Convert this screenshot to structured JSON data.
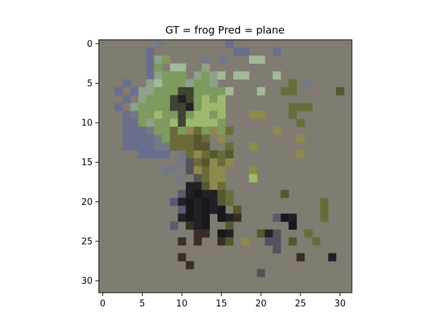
{
  "figure": {
    "title": "GT = frog Pred = plane",
    "background_color": "#807c72",
    "grid_size": 32,
    "xticks": [
      "0",
      "5",
      "10",
      "15",
      "20",
      "25",
      "30"
    ],
    "yticks": [
      "0",
      "5",
      "10",
      "15",
      "20",
      "25",
      "30"
    ]
  },
  "image": {
    "description_type": "pixelated 32x32 thumbnail",
    "palette": {
      "blue": "#6a6e8c",
      "blue_dark": "#5d6180",
      "slate": "#737a84",
      "sage": "#8fa188",
      "green": "#7f9a5e",
      "green_light": "#9fb870",
      "green_pale": "#a3b99a",
      "olive": "#6b6b3a",
      "olive_dark": "#56572e",
      "olive_light": "#8c8a4c",
      "forest": "#3f4530",
      "dark": "#232126",
      "darker": "#18171b",
      "brown": "#3b2e26",
      "grey_dark": "#54535c",
      "purple": "#5c5a72"
    },
    "pixels": [
      [
        7,
        0,
        "slate"
      ],
      [
        16,
        0,
        "blue"
      ],
      [
        6,
        1,
        "blue"
      ],
      [
        17,
        1,
        "blue"
      ],
      [
        18,
        1,
        "blue"
      ],
      [
        22,
        1,
        "blue"
      ],
      [
        6,
        2,
        "blue"
      ],
      [
        7,
        2,
        "sage"
      ],
      [
        8,
        2,
        "green"
      ],
      [
        13,
        2,
        "slate"
      ],
      [
        15,
        2,
        "slate"
      ],
      [
        19,
        2,
        "green_pale"
      ],
      [
        20,
        2,
        "green_pale"
      ],
      [
        6,
        3,
        "blue"
      ],
      [
        7,
        3,
        "green"
      ],
      [
        9,
        3,
        "green_pale"
      ],
      [
        10,
        3,
        "green_pale"
      ],
      [
        13,
        3,
        "sage"
      ],
      [
        6,
        4,
        "blue"
      ],
      [
        7,
        4,
        "sage"
      ],
      [
        8,
        4,
        "green"
      ],
      [
        9,
        4,
        "green"
      ],
      [
        10,
        4,
        "green"
      ],
      [
        12,
        4,
        "sage"
      ],
      [
        13,
        4,
        "green"
      ],
      [
        14,
        4,
        "sage"
      ],
      [
        15,
        4,
        "green_pale"
      ],
      [
        17,
        4,
        "green_pale"
      ],
      [
        18,
        4,
        "green_pale"
      ],
      [
        22,
        4,
        "green_pale"
      ],
      [
        3,
        5,
        "blue"
      ],
      [
        6,
        5,
        "sage"
      ],
      [
        7,
        5,
        "green_pale"
      ],
      [
        8,
        5,
        "green"
      ],
      [
        9,
        5,
        "green"
      ],
      [
        10,
        5,
        "green"
      ],
      [
        11,
        5,
        "sage"
      ],
      [
        12,
        5,
        "green"
      ],
      [
        13,
        5,
        "green"
      ],
      [
        14,
        5,
        "sage"
      ],
      [
        24,
        5,
        "olive"
      ],
      [
        26,
        5,
        "slate"
      ],
      [
        2,
        6,
        "blue"
      ],
      [
        4,
        6,
        "blue"
      ],
      [
        5,
        6,
        "sage"
      ],
      [
        6,
        6,
        "sage"
      ],
      [
        7,
        6,
        "green"
      ],
      [
        8,
        6,
        "green"
      ],
      [
        9,
        6,
        "green"
      ],
      [
        10,
        6,
        "forest"
      ],
      [
        11,
        6,
        "forest"
      ],
      [
        12,
        6,
        "green"
      ],
      [
        13,
        6,
        "green"
      ],
      [
        14,
        6,
        "green"
      ],
      [
        15,
        6,
        "green"
      ],
      [
        16,
        6,
        "green_pale"
      ],
      [
        20,
        6,
        "green_pale"
      ],
      [
        23,
        6,
        "olive"
      ],
      [
        24,
        6,
        "olive"
      ],
      [
        30,
        6,
        "olive_dark"
      ],
      [
        3,
        7,
        "blue"
      ],
      [
        5,
        7,
        "sage"
      ],
      [
        6,
        7,
        "green"
      ],
      [
        7,
        7,
        "green"
      ],
      [
        8,
        7,
        "green"
      ],
      [
        9,
        7,
        "forest"
      ],
      [
        10,
        7,
        "dark"
      ],
      [
        11,
        7,
        "forest"
      ],
      [
        12,
        7,
        "green"
      ],
      [
        13,
        7,
        "green_light"
      ],
      [
        14,
        7,
        "green"
      ],
      [
        15,
        7,
        "green_light"
      ],
      [
        2,
        8,
        "blue"
      ],
      [
        4,
        8,
        "sage"
      ],
      [
        5,
        8,
        "green"
      ],
      [
        6,
        8,
        "green"
      ],
      [
        7,
        8,
        "green"
      ],
      [
        8,
        8,
        "green"
      ],
      [
        9,
        8,
        "forest"
      ],
      [
        10,
        8,
        "forest"
      ],
      [
        11,
        8,
        "dark"
      ],
      [
        12,
        8,
        "green"
      ],
      [
        13,
        8,
        "green_light"
      ],
      [
        14,
        8,
        "green_light"
      ],
      [
        15,
        8,
        "green_light"
      ],
      [
        24,
        8,
        "olive"
      ],
      [
        25,
        8,
        "olive"
      ],
      [
        26,
        8,
        "olive"
      ],
      [
        3,
        9,
        "blue"
      ],
      [
        4,
        9,
        "slate"
      ],
      [
        5,
        9,
        "green"
      ],
      [
        6,
        9,
        "green"
      ],
      [
        7,
        9,
        "green_light"
      ],
      [
        8,
        9,
        "green"
      ],
      [
        9,
        9,
        "green"
      ],
      [
        10,
        9,
        "forest"
      ],
      [
        11,
        9,
        "green"
      ],
      [
        12,
        9,
        "green_light"
      ],
      [
        13,
        9,
        "green_light"
      ],
      [
        14,
        9,
        "green"
      ],
      [
        15,
        9,
        "green_light"
      ],
      [
        19,
        9,
        "olive_light"
      ],
      [
        20,
        9,
        "olive_light"
      ],
      [
        24,
        9,
        "olive"
      ],
      [
        3,
        10,
        "blue"
      ],
      [
        4,
        10,
        "blue"
      ],
      [
        5,
        10,
        "green"
      ],
      [
        6,
        10,
        "sage"
      ],
      [
        7,
        10,
        "green"
      ],
      [
        8,
        10,
        "green"
      ],
      [
        9,
        10,
        "green_light"
      ],
      [
        10,
        10,
        "forest"
      ],
      [
        11,
        10,
        "green_light"
      ],
      [
        12,
        10,
        "green_light"
      ],
      [
        13,
        10,
        "green_light"
      ],
      [
        14,
        10,
        "green_light"
      ],
      [
        15,
        10,
        "green"
      ],
      [
        25,
        10,
        "olive"
      ],
      [
        3,
        11,
        "blue"
      ],
      [
        4,
        11,
        "blue"
      ],
      [
        5,
        11,
        "blue"
      ],
      [
        6,
        11,
        "slate"
      ],
      [
        7,
        11,
        "green"
      ],
      [
        8,
        11,
        "green"
      ],
      [
        9,
        11,
        "olive"
      ],
      [
        10,
        11,
        "green"
      ],
      [
        11,
        11,
        "olive_light"
      ],
      [
        12,
        11,
        "olive"
      ],
      [
        13,
        11,
        "green"
      ],
      [
        14,
        11,
        "olive_light"
      ],
      [
        15,
        11,
        "green"
      ],
      [
        16,
        11,
        "olive"
      ],
      [
        22,
        11,
        "olive_light"
      ],
      [
        3,
        12,
        "blue"
      ],
      [
        4,
        12,
        "blue"
      ],
      [
        5,
        12,
        "blue"
      ],
      [
        6,
        12,
        "blue"
      ],
      [
        7,
        12,
        "slate"
      ],
      [
        8,
        12,
        "green"
      ],
      [
        9,
        12,
        "olive"
      ],
      [
        10,
        12,
        "olive"
      ],
      [
        11,
        12,
        "olive"
      ],
      [
        12,
        12,
        "olive_dark"
      ],
      [
        13,
        12,
        "olive"
      ],
      [
        15,
        12,
        "olive_light"
      ],
      [
        25,
        12,
        "olive_light"
      ],
      [
        3,
        13,
        "blue"
      ],
      [
        4,
        13,
        "blue"
      ],
      [
        5,
        13,
        "blue"
      ],
      [
        6,
        13,
        "blue"
      ],
      [
        7,
        13,
        "slate"
      ],
      [
        8,
        13,
        "slate"
      ],
      [
        9,
        13,
        "olive"
      ],
      [
        10,
        13,
        "olive"
      ],
      [
        11,
        13,
        "olive"
      ],
      [
        12,
        13,
        "olive_dark"
      ],
      [
        13,
        13,
        "olive_dark"
      ],
      [
        16,
        13,
        "olive"
      ],
      [
        19,
        13,
        "olive_light"
      ],
      [
        5,
        14,
        "blue"
      ],
      [
        6,
        14,
        "blue"
      ],
      [
        7,
        14,
        "blue"
      ],
      [
        8,
        14,
        "blue"
      ],
      [
        10,
        14,
        "slate"
      ],
      [
        11,
        14,
        "olive"
      ],
      [
        12,
        14,
        "olive_light"
      ],
      [
        13,
        14,
        "olive"
      ],
      [
        14,
        14,
        "olive_dark"
      ],
      [
        15,
        14,
        "olive"
      ],
      [
        16,
        14,
        "olive_dark"
      ],
      [
        25,
        14,
        "olive_light"
      ],
      [
        10,
        15,
        "slate"
      ],
      [
        11,
        15,
        "grey_dark"
      ],
      [
        12,
        15,
        "olive"
      ],
      [
        13,
        15,
        "olive_dark"
      ],
      [
        14,
        15,
        "olive_light"
      ],
      [
        15,
        15,
        "olive"
      ],
      [
        16,
        15,
        "olive_light"
      ],
      [
        8,
        16,
        "slate"
      ],
      [
        9,
        16,
        "slate"
      ],
      [
        11,
        16,
        "grey_dark"
      ],
      [
        12,
        16,
        "olive_light"
      ],
      [
        13,
        16,
        "olive"
      ],
      [
        14,
        16,
        "olive_light"
      ],
      [
        15,
        16,
        "olive_light"
      ],
      [
        19,
        16,
        "olive_light"
      ],
      [
        10,
        17,
        "slate"
      ],
      [
        12,
        17,
        "grey_dark"
      ],
      [
        13,
        17,
        "olive"
      ],
      [
        14,
        17,
        "olive_light"
      ],
      [
        15,
        17,
        "olive_light"
      ],
      [
        19,
        17,
        "green_light"
      ],
      [
        11,
        18,
        "dark"
      ],
      [
        12,
        18,
        "dark"
      ],
      [
        13,
        18,
        "olive_dark"
      ],
      [
        14,
        18,
        "olive_light"
      ],
      [
        15,
        18,
        "olive"
      ],
      [
        10,
        19,
        "purple"
      ],
      [
        11,
        19,
        "dark"
      ],
      [
        12,
        19,
        "darker"
      ],
      [
        13,
        19,
        "dark"
      ],
      [
        14,
        19,
        "dark"
      ],
      [
        15,
        19,
        "olive_dark"
      ],
      [
        16,
        19,
        "olive"
      ],
      [
        23,
        19,
        "olive_dark"
      ],
      [
        9,
        20,
        "purple"
      ],
      [
        10,
        20,
        "dark"
      ],
      [
        11,
        20,
        "darker"
      ],
      [
        12,
        20,
        "dark"
      ],
      [
        13,
        20,
        "darker"
      ],
      [
        14,
        20,
        "dark"
      ],
      [
        15,
        20,
        "olive_dark"
      ],
      [
        16,
        20,
        "olive"
      ],
      [
        28,
        20,
        "olive"
      ],
      [
        10,
        21,
        "purple"
      ],
      [
        11,
        21,
        "darker"
      ],
      [
        12,
        21,
        "dark"
      ],
      [
        13,
        21,
        "darker"
      ],
      [
        14,
        21,
        "dark"
      ],
      [
        15,
        21,
        "darker"
      ],
      [
        17,
        21,
        "olive_dark"
      ],
      [
        28,
        21,
        "olive"
      ],
      [
        10,
        22,
        "dark"
      ],
      [
        11,
        22,
        "darker"
      ],
      [
        12,
        22,
        "dark"
      ],
      [
        13,
        22,
        "darker"
      ],
      [
        15,
        22,
        "darker"
      ],
      [
        16,
        22,
        "dark"
      ],
      [
        17,
        22,
        "brown"
      ],
      [
        22,
        22,
        "purple"
      ],
      [
        23,
        22,
        "darker"
      ],
      [
        24,
        22,
        "dark"
      ],
      [
        28,
        22,
        "olive"
      ],
      [
        9,
        23,
        "purple"
      ],
      [
        11,
        23,
        "brown"
      ],
      [
        12,
        23,
        "dark"
      ],
      [
        13,
        23,
        "darker"
      ],
      [
        16,
        23,
        "olive_dark"
      ],
      [
        24,
        23,
        "darker"
      ],
      [
        12,
        24,
        "brown"
      ],
      [
        13,
        24,
        "brown"
      ],
      [
        15,
        24,
        "darker"
      ],
      [
        16,
        24,
        "dark"
      ],
      [
        20,
        24,
        "olive_dark"
      ],
      [
        21,
        24,
        "dark"
      ],
      [
        22,
        24,
        "grey_dark"
      ],
      [
        26,
        24,
        "olive"
      ],
      [
        10,
        25,
        "brown"
      ],
      [
        12,
        25,
        "brown"
      ],
      [
        15,
        25,
        "brown"
      ],
      [
        16,
        25,
        "olive_dark"
      ],
      [
        18,
        25,
        "olive_light"
      ],
      [
        21,
        25,
        "grey_dark"
      ],
      [
        22,
        25,
        "grey_dark"
      ],
      [
        24,
        25,
        "olive_dark"
      ],
      [
        27,
        25,
        "olive"
      ],
      [
        22,
        26,
        "grey_dark"
      ],
      [
        10,
        27,
        "brown"
      ],
      [
        25,
        27,
        "brown"
      ],
      [
        29,
        27,
        "dark"
      ],
      [
        11,
        28,
        "brown"
      ],
      [
        20,
        29,
        "grey_dark"
      ]
    ]
  }
}
